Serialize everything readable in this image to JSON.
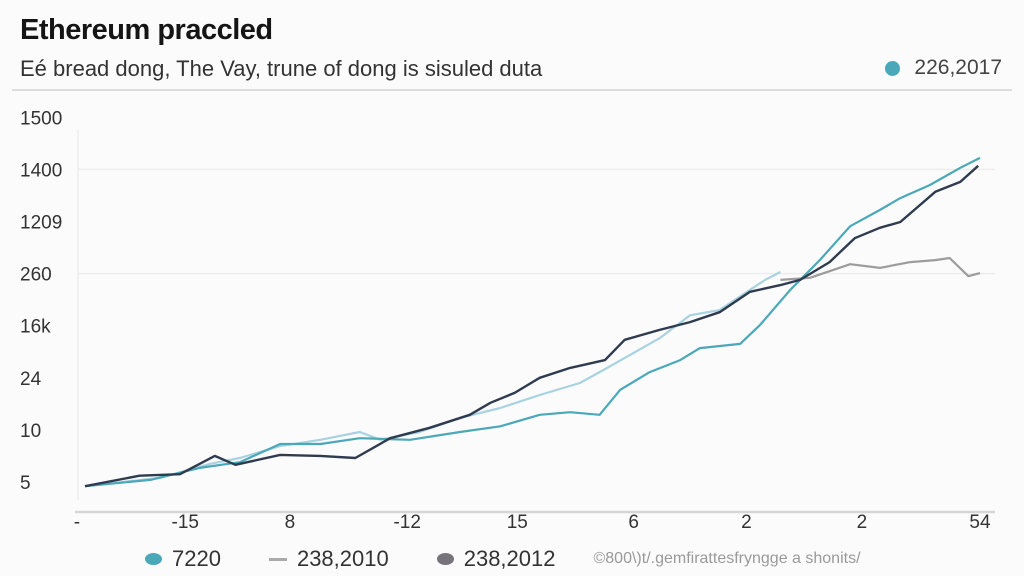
{
  "chart_data": {
    "type": "line",
    "title": "Ethereum praccled",
    "subtitle": "Eé bread dong, The Vay, trune of dong is sisuled duta",
    "top_legend": {
      "label": "226,2017",
      "color": "#4aa8b8"
    },
    "y_ticks": [
      "1500",
      "1400",
      "1209",
      "260",
      "16k",
      "24",
      "10",
      "5"
    ],
    "y_tick_index_note": "tick labels are evenly spaced; series y values are in tick-index units (0 = '5', 7 = '1500')",
    "ylim": [
      0,
      7
    ],
    "x_ticks": [
      {
        "label": "-",
        "x": -0.9
      },
      {
        "label": "-15",
        "x": 11.2
      },
      {
        "label": "8",
        "x": 22.9
      },
      {
        "label": "-12",
        "x": 36
      },
      {
        "label": "15",
        "x": 48.3
      },
      {
        "label": "6",
        "x": 61.3
      },
      {
        "label": "2",
        "x": 73.9
      },
      {
        "label": "2",
        "x": 86.8
      },
      {
        "label": "54",
        "x": 100
      }
    ],
    "xlim": [
      0,
      100
    ],
    "grid": "horizontal (partial)",
    "legend_placement": "bottom",
    "series": [
      {
        "name": "7220",
        "color": "#4aa8b8",
        "marker": "dot",
        "points": [
          [
            0,
            -0.08
          ],
          [
            7.3,
            0.04
          ],
          [
            12.8,
            0.27
          ],
          [
            17.3,
            0.38
          ],
          [
            21.8,
            0.73
          ],
          [
            26.3,
            0.73
          ],
          [
            30.7,
            0.84
          ],
          [
            36.3,
            0.81
          ],
          [
            41.9,
            0.96
          ],
          [
            46.4,
            1.07
          ],
          [
            50.8,
            1.29
          ],
          [
            54.2,
            1.34
          ],
          [
            57.5,
            1.29
          ],
          [
            59.8,
            1.77
          ],
          [
            63.1,
            2.11
          ],
          [
            66.5,
            2.34
          ],
          [
            68.7,
            2.57
          ],
          [
            73.2,
            2.65
          ],
          [
            75.4,
            3.01
          ],
          [
            78.8,
            3.69
          ],
          [
            82.1,
            4.26
          ],
          [
            85.5,
            4.91
          ],
          [
            88.8,
            5.22
          ],
          [
            91.1,
            5.45
          ],
          [
            94.4,
            5.7
          ],
          [
            97.8,
            6.03
          ],
          [
            100,
            6.22
          ]
        ]
      },
      {
        "name": "238,2010",
        "color": "#a9d2e0",
        "marker": "dash",
        "points": [
          [
            0,
            -0.08
          ],
          [
            8.4,
            0.08
          ],
          [
            14,
            0.35
          ],
          [
            17.3,
            0.46
          ],
          [
            21.8,
            0.69
          ],
          [
            26.3,
            0.81
          ],
          [
            30.7,
            0.96
          ],
          [
            33,
            0.81
          ],
          [
            37.4,
            0.96
          ],
          [
            41.9,
            1.23
          ],
          [
            46.4,
            1.42
          ],
          [
            50.8,
            1.67
          ],
          [
            55.3,
            1.9
          ],
          [
            57.5,
            2.11
          ],
          [
            60.9,
            2.44
          ],
          [
            64.2,
            2.76
          ],
          [
            67.6,
            3.2
          ],
          [
            70.9,
            3.3
          ],
          [
            74.3,
            3.69
          ],
          [
            76,
            3.88
          ],
          [
            77.7,
            4.03
          ]
        ]
      },
      {
        "name": "238,2012",
        "color": "#2f3b4f",
        "marker": "dot",
        "points": [
          [
            0,
            -0.08
          ],
          [
            6.1,
            0.12
          ],
          [
            10.6,
            0.15
          ],
          [
            14.5,
            0.5
          ],
          [
            16.8,
            0.33
          ],
          [
            21.8,
            0.52
          ],
          [
            26.3,
            0.5
          ],
          [
            30.2,
            0.46
          ],
          [
            34.1,
            0.84
          ],
          [
            38.5,
            1.04
          ],
          [
            43,
            1.29
          ],
          [
            45.3,
            1.52
          ],
          [
            48,
            1.71
          ],
          [
            50.8,
            2.0
          ],
          [
            54.2,
            2.19
          ],
          [
            58.1,
            2.34
          ],
          [
            60.3,
            2.73
          ],
          [
            64.2,
            2.92
          ],
          [
            67.6,
            3.07
          ],
          [
            70.9,
            3.26
          ],
          [
            74.3,
            3.65
          ],
          [
            77.7,
            3.78
          ],
          [
            79.9,
            3.88
          ],
          [
            83.2,
            4.22
          ],
          [
            86,
            4.68
          ],
          [
            88.8,
            4.88
          ],
          [
            91.1,
            4.99
          ],
          [
            95,
            5.57
          ],
          [
            97.8,
            5.76
          ],
          [
            99.8,
            6.07
          ]
        ]
      },
      {
        "name": "",
        "color": "#9c9c9c",
        "points": [
          [
            77.7,
            3.88
          ],
          [
            81,
            3.92
          ],
          [
            85.5,
            4.18
          ],
          [
            88.8,
            4.11
          ],
          [
            92.2,
            4.22
          ],
          [
            95,
            4.26
          ],
          [
            96.6,
            4.3
          ],
          [
            98.7,
            3.95
          ],
          [
            100,
            4.01
          ]
        ]
      }
    ],
    "legend_dot_color_2012": "#77737a",
    "source": "©800\\)t/.gemfirattesfryngge a shonits/"
  }
}
